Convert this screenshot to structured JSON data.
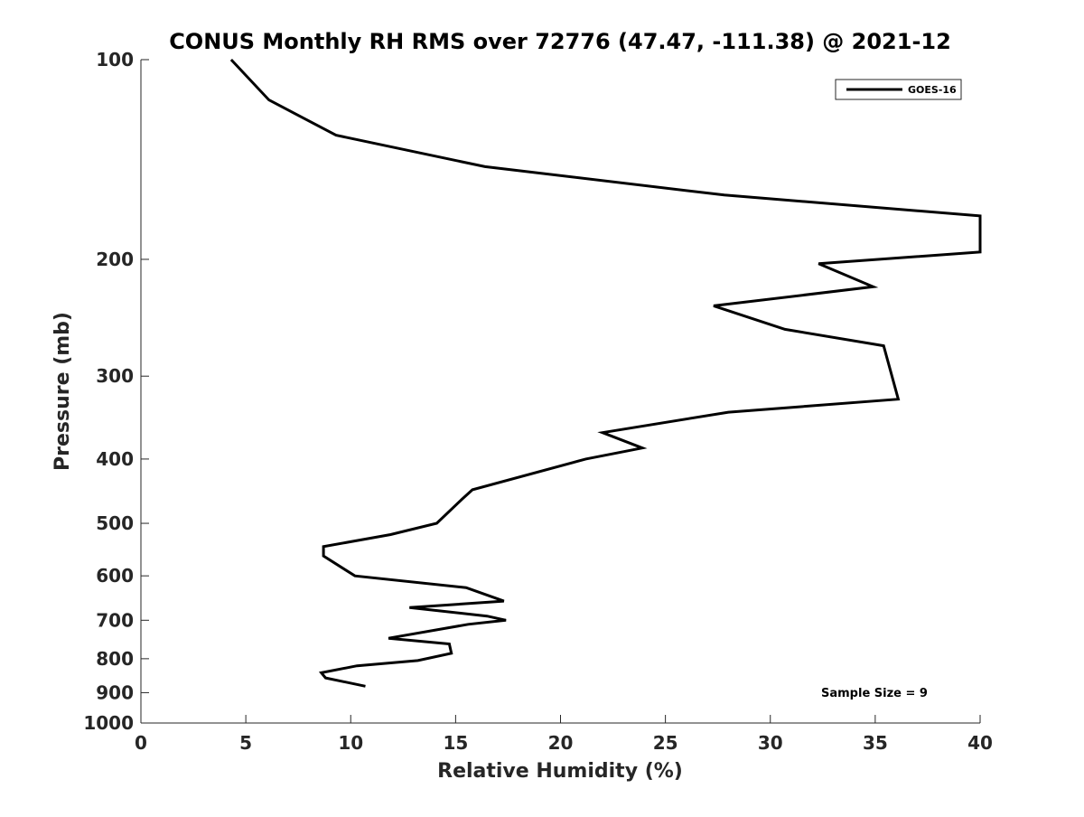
{
  "chart_data": {
    "type": "line",
    "title": "CONUS Monthly RH RMS over 72776 (47.47, -111.38) @ 2021-12",
    "xlabel": "Relative Humidity (%)",
    "ylabel": "Pressure (mb)",
    "xlim": [
      0,
      40
    ],
    "ylim": [
      100,
      1000
    ],
    "y_scale": "log",
    "y_reversed": true,
    "grid": false,
    "legend_position": "top-right",
    "x_ticks": [
      "0",
      "5",
      "10",
      "15",
      "20",
      "25",
      "30",
      "35",
      "40"
    ],
    "y_ticks": [
      "100",
      "200",
      "300",
      "400",
      "500",
      "600",
      "700",
      "800",
      "900",
      "1000"
    ],
    "annotation": "Sample Size = 9",
    "series": [
      {
        "name": "GOES-16",
        "color": "#000000",
        "x": [
          4.3,
          6.1,
          9.3,
          16.4,
          27.8,
          40.0,
          40.0,
          32.3,
          34.9,
          27.3,
          30.7,
          35.4,
          36.1,
          28.0,
          22.0,
          23.9,
          21.2,
          15.8,
          15.3,
          14.1,
          11.9,
          8.7,
          8.7,
          10.2,
          15.5,
          17.3,
          12.8,
          16.5,
          17.4,
          15.6,
          11.8,
          14.7,
          14.8,
          13.2,
          10.3,
          8.6,
          8.8,
          10.7
        ],
        "y": [
          100,
          115,
          130,
          145,
          160,
          172,
          195,
          203,
          220,
          235,
          255,
          270,
          325,
          340,
          365,
          385,
          400,
          445,
          460,
          500,
          520,
          542,
          560,
          600,
          625,
          655,
          670,
          690,
          700,
          710,
          745,
          760,
          785,
          805,
          820,
          840,
          855,
          880
        ]
      }
    ]
  }
}
